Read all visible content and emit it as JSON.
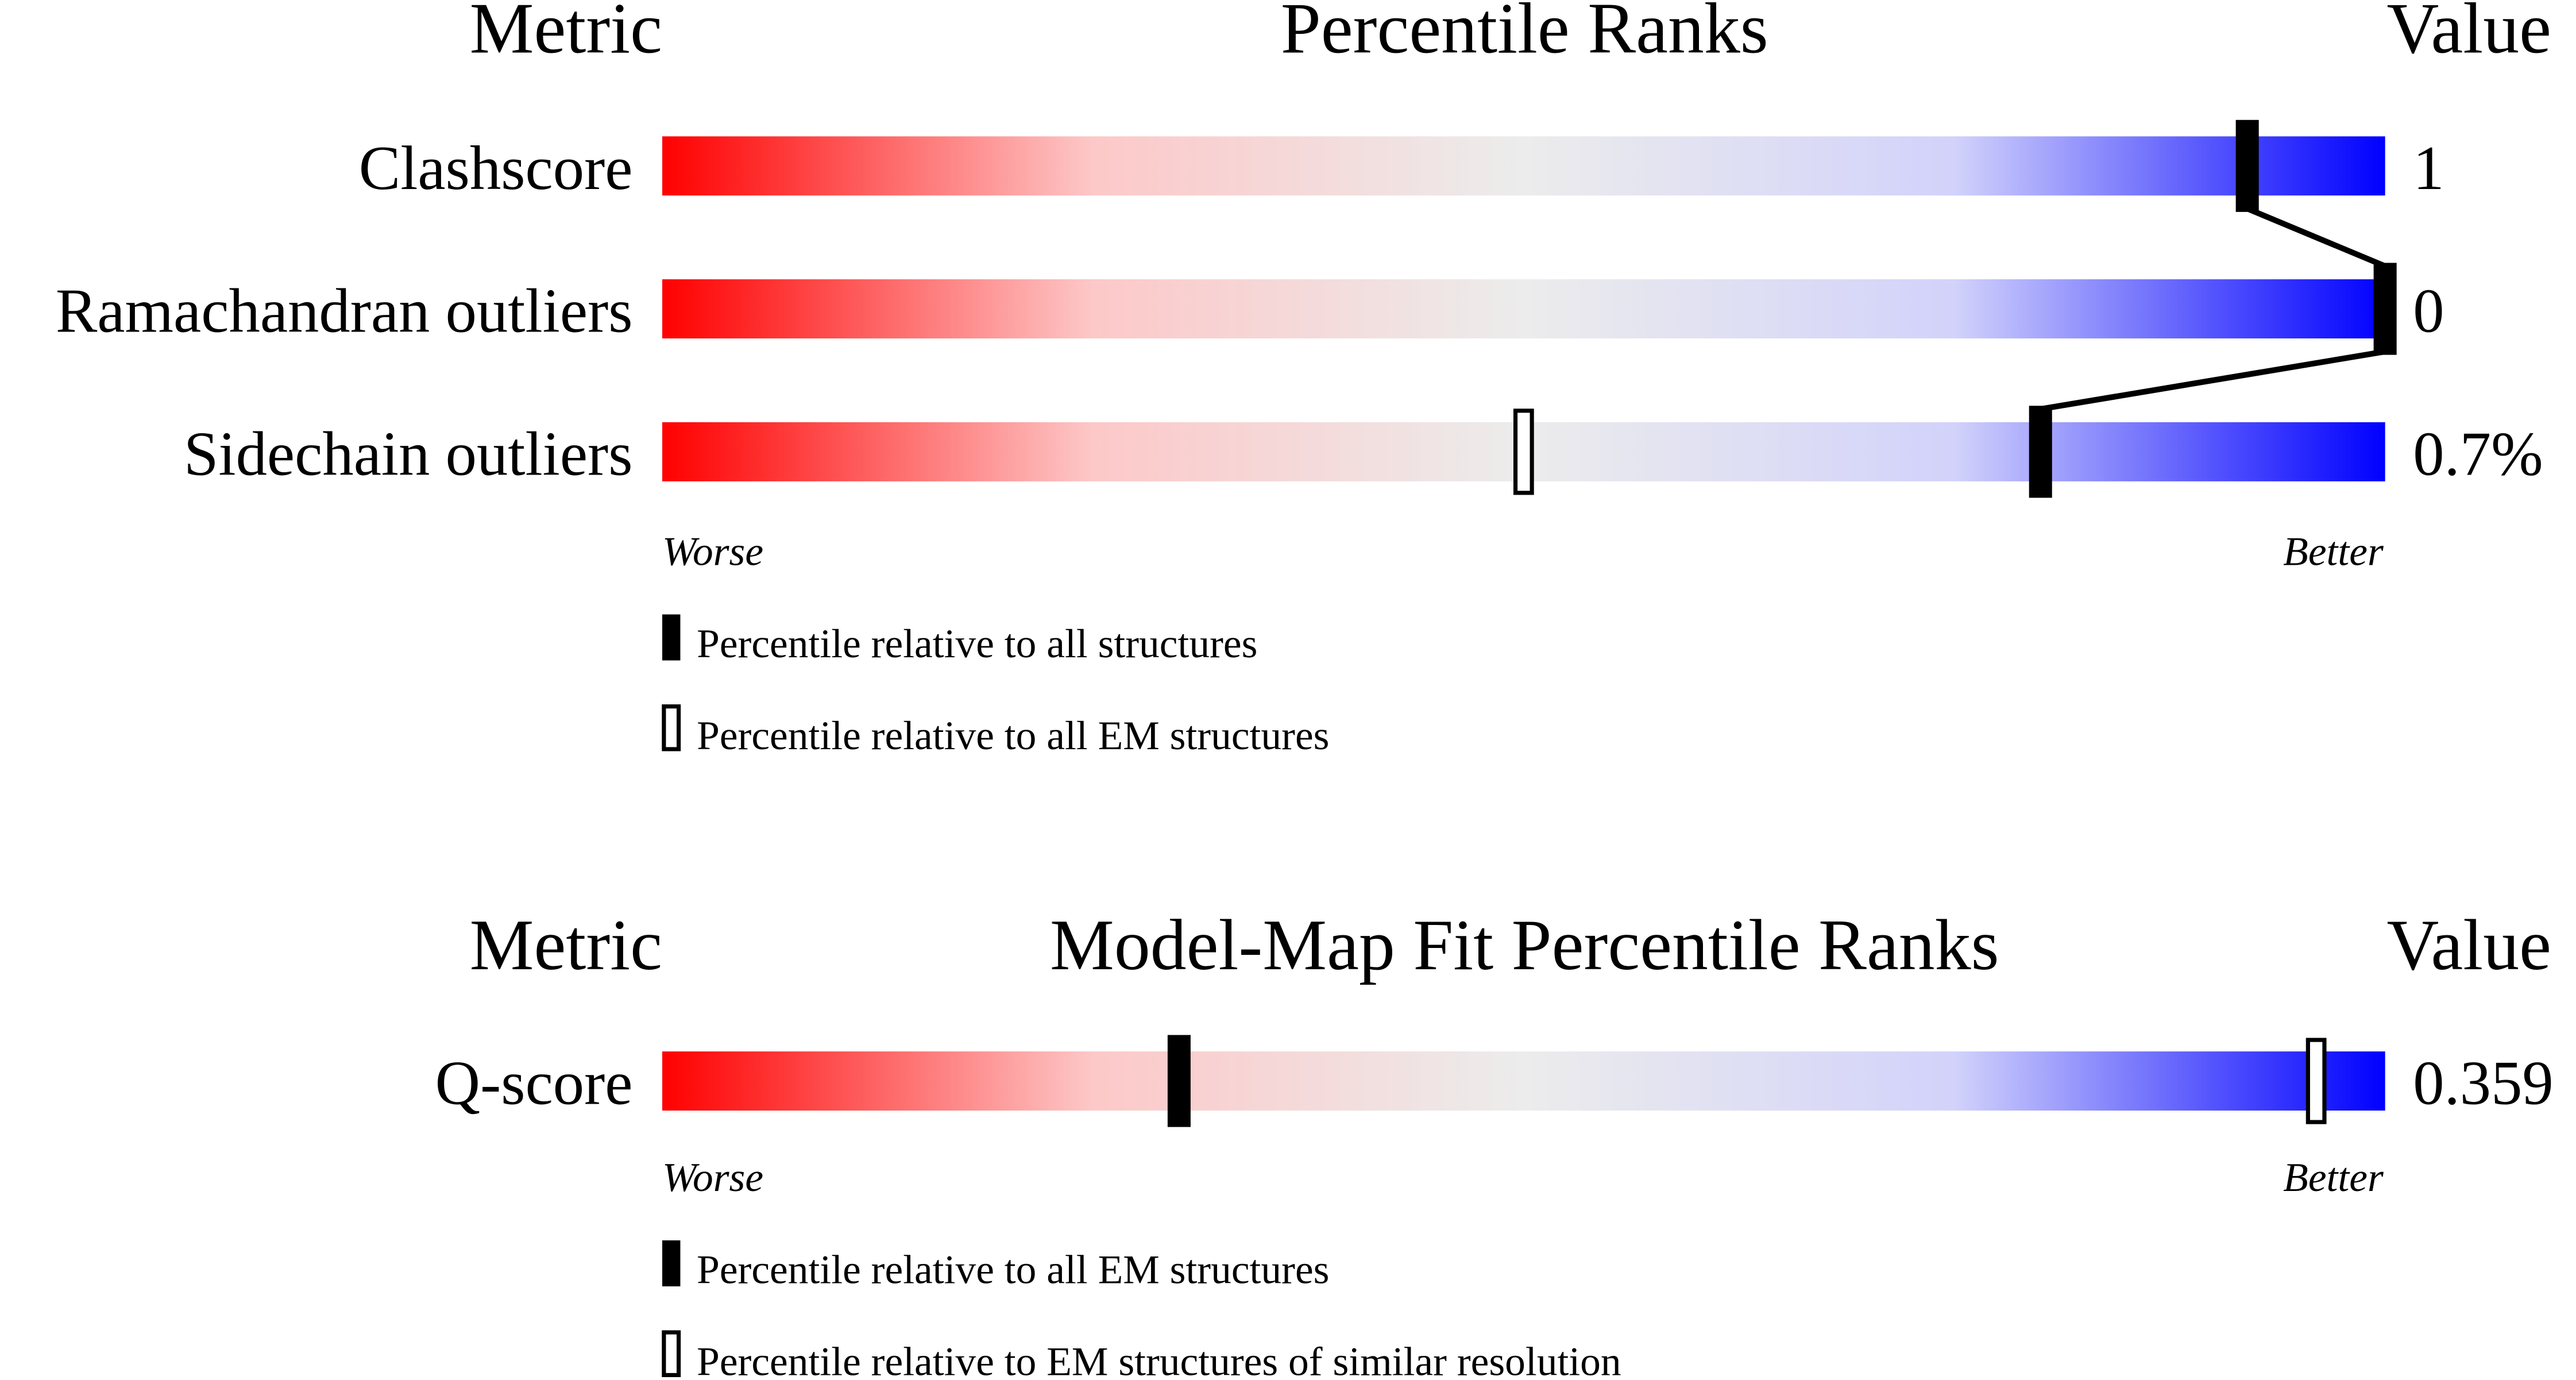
{
  "chart_data": [
    {
      "type": "percentile-slider",
      "headers": {
        "metric": "Metric",
        "title": "Percentile Ranks",
        "value": "Value"
      },
      "axis": {
        "min_label": "Worse",
        "max_label": "Better",
        "range": [
          0,
          100
        ]
      },
      "gradient": [
        "#ff0000",
        "#fddcdc",
        "#ececec",
        "#dedefd",
        "#0000ff"
      ],
      "rows": [
        {
          "metric": "Clashscore",
          "value": "1",
          "percentile_all": 92,
          "percentile_em": null
        },
        {
          "metric": "Ramachandran outliers",
          "value": "0",
          "percentile_all": 100,
          "percentile_em": null
        },
        {
          "metric": "Sidechain outliers",
          "value": "0.7%",
          "percentile_all": 80,
          "percentile_em": 50
        }
      ],
      "legend": [
        {
          "marker": "filled",
          "label": "Percentile relative to all structures"
        },
        {
          "marker": "hollow",
          "label": "Percentile relative to all EM structures"
        }
      ]
    },
    {
      "type": "percentile-slider",
      "headers": {
        "metric": "Metric",
        "title": "Model-Map Fit Percentile Ranks",
        "value": "Value"
      },
      "axis": {
        "min_label": "Worse",
        "max_label": "Better",
        "range": [
          0,
          100
        ]
      },
      "gradient": [
        "#ff0000",
        "#fddcdc",
        "#ececec",
        "#dedefd",
        "#0000ff"
      ],
      "rows": [
        {
          "metric": "Q-score",
          "value": "0.359",
          "percentile_all": 30,
          "percentile_em": 96
        }
      ],
      "legend": [
        {
          "marker": "filled",
          "label": "Percentile relative to all EM structures"
        },
        {
          "marker": "hollow",
          "label": "Percentile relative to EM structures of similar resolution"
        }
      ]
    }
  ]
}
